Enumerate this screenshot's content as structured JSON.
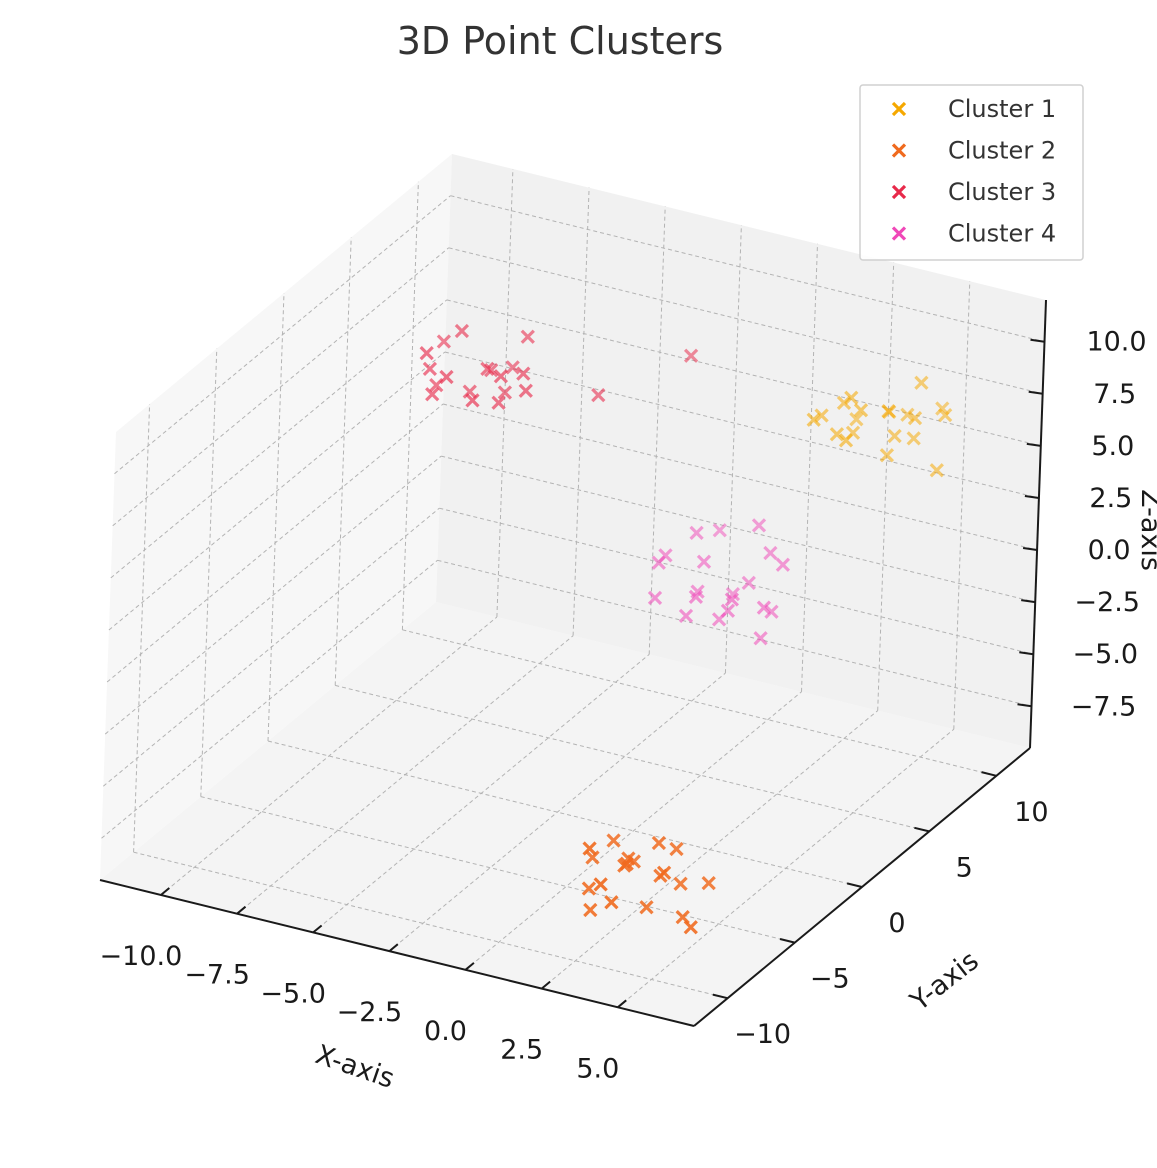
{
  "chart_data": {
    "type": "scatter",
    "projection": "3d",
    "title": "3D Point Clusters",
    "xlabel": "X-axis",
    "ylabel": "Y-axis",
    "zlabel": "Z-axis",
    "xlim": [
      -12,
      7.5
    ],
    "ylim": [
      -12.5,
      12.5
    ],
    "zlim": [
      -9.5,
      12
    ],
    "xticks": [
      -10,
      -7.5,
      -5,
      -2.5,
      0,
      2.5,
      5
    ],
    "xtick_labels": [
      "−10.0",
      "−7.5",
      "−5.0",
      "−2.5",
      "0.0",
      "2.5",
      "5.0"
    ],
    "yticks": [
      -10,
      -5,
      0,
      5,
      10
    ],
    "ytick_labels": [
      "−10",
      "−5",
      "0",
      "5",
      "10"
    ],
    "zticks": [
      -7.5,
      -5,
      -2.5,
      0,
      2.5,
      5,
      7.5,
      10
    ],
    "ztick_labels": [
      "−7.5",
      "−5.0",
      "−2.5",
      "0.0",
      "2.5",
      "5.0",
      "7.5",
      "10.0"
    ],
    "grid": true,
    "legend_position": "top-right",
    "marker": "x",
    "series": [
      {
        "name": "Cluster 1",
        "color": "#f5a800",
        "points": [
          [
            4.2,
            8.5,
            5.5
          ],
          [
            3.1,
            7.2,
            6.8
          ],
          [
            4.8,
            9.1,
            6.2
          ],
          [
            2.5,
            6.8,
            7.5
          ],
          [
            5.2,
            8.2,
            7.8
          ],
          [
            3.8,
            9.5,
            6.9
          ],
          [
            4.5,
            7.8,
            8.1
          ],
          [
            2.9,
            8.9,
            5.9
          ],
          [
            5.5,
            9.8,
            7.2
          ],
          [
            3.4,
            7.5,
            8.5
          ],
          [
            4.1,
            10.2,
            6.5
          ],
          [
            2.2,
            8.1,
            6.9
          ],
          [
            5.8,
            8.6,
            5.3
          ],
          [
            3.7,
            6.5,
            7.1
          ],
          [
            4.9,
            9.3,
            8.8
          ],
          [
            3.0,
            7.9,
            7.9
          ],
          [
            4.3,
            8.8,
            6.3
          ],
          [
            5.1,
            10.5,
            7.0
          ],
          [
            2.7,
            9.6,
            6.1
          ],
          [
            3.9,
            7.1,
            8.3
          ]
        ]
      },
      {
        "name": "Cluster 2",
        "color": "#f06a1e",
        "points": [
          [
            2.5,
            -6.5,
            -6.8
          ],
          [
            3.8,
            -5.2,
            -7.9
          ],
          [
            1.9,
            -7.8,
            -5.5
          ],
          [
            3.1,
            -6.1,
            -8.8
          ],
          [
            2.2,
            -5.5,
            -7.1
          ],
          [
            4.1,
            -7.2,
            -6.2
          ],
          [
            1.5,
            -6.8,
            -8.1
          ],
          [
            3.5,
            -4.9,
            -6.5
          ],
          [
            2.8,
            -8.1,
            -7.6
          ],
          [
            1.2,
            -5.9,
            -7.2
          ],
          [
            4.5,
            -6.6,
            -8.5
          ],
          [
            3.0,
            -7.5,
            -6.0
          ],
          [
            2.0,
            -4.6,
            -7.8
          ],
          [
            3.3,
            -5.8,
            -5.8
          ],
          [
            1.7,
            -7.1,
            -8.9
          ],
          [
            4.8,
            -5.4,
            -7.4
          ],
          [
            2.6,
            -8.5,
            -6.6
          ],
          [
            3.6,
            -6.3,
            -7.0
          ],
          [
            1.4,
            -4.8,
            -6.9
          ],
          [
            5.2,
            -7.6,
            -8.2
          ]
        ]
      },
      {
        "name": "Cluster 3",
        "color": "#e8294a",
        "points": [
          [
            -7.5,
            5.2,
            7.2
          ],
          [
            -8.8,
            4.1,
            6.1
          ],
          [
            -6.9,
            6.8,
            8.1
          ],
          [
            -8.1,
            3.5,
            7.5
          ],
          [
            -7.2,
            5.9,
            5.8
          ],
          [
            -9.2,
            4.8,
            6.8
          ],
          [
            -6.5,
            3.9,
            7.9
          ],
          [
            -7.8,
            6.2,
            6.5
          ],
          [
            -8.5,
            5.5,
            8.5
          ],
          [
            -6.8,
            4.5,
            6.2
          ],
          [
            -9.5,
            6.5,
            7.1
          ],
          [
            -7.1,
            3.2,
            6.9
          ],
          [
            -8.3,
            5.8,
            5.5
          ],
          [
            -6.2,
            4.9,
            7.6
          ],
          [
            -8.9,
            3.8,
            8.2
          ],
          [
            -7.4,
            6.9,
            6.4
          ],
          [
            -5.8,
            4.2,
            7.3
          ],
          [
            -9.1,
            5.1,
            5.9
          ],
          [
            -4.2,
            6.0,
            6.7
          ],
          [
            -2.5,
            9.0,
            7.6
          ]
        ]
      },
      {
        "name": "Cluster 4",
        "color": "#f048b8",
        "points": [
          [
            -1.5,
            8.2,
            -1.5
          ],
          [
            -0.2,
            7.1,
            -2.8
          ],
          [
            -2.2,
            9.2,
            -0.9
          ],
          [
            0.5,
            8.8,
            -3.5
          ],
          [
            -1.0,
            6.5,
            -2.1
          ],
          [
            -2.8,
            7.8,
            -1.8
          ],
          [
            0.1,
            9.5,
            -1.2
          ],
          [
            -1.8,
            8.5,
            -3.2
          ],
          [
            0.8,
            7.5,
            -2.5
          ],
          [
            -0.6,
            10.2,
            -0.5
          ],
          [
            -2.5,
            6.9,
            -2.9
          ],
          [
            -1.2,
            9.8,
            -3.8
          ],
          [
            0.3,
            6.2,
            -1.6
          ],
          [
            -0.9,
            8.1,
            -4.0
          ],
          [
            -3.1,
            9.0,
            -2.2
          ],
          [
            0.9,
            8.6,
            -1.0
          ],
          [
            -1.6,
            7.2,
            -3.6
          ],
          [
            -0.4,
            9.1,
            -2.6
          ],
          [
            -2.0,
            10.5,
            -1.4
          ],
          [
            0.6,
            7.8,
            -4.2
          ]
        ]
      }
    ]
  }
}
